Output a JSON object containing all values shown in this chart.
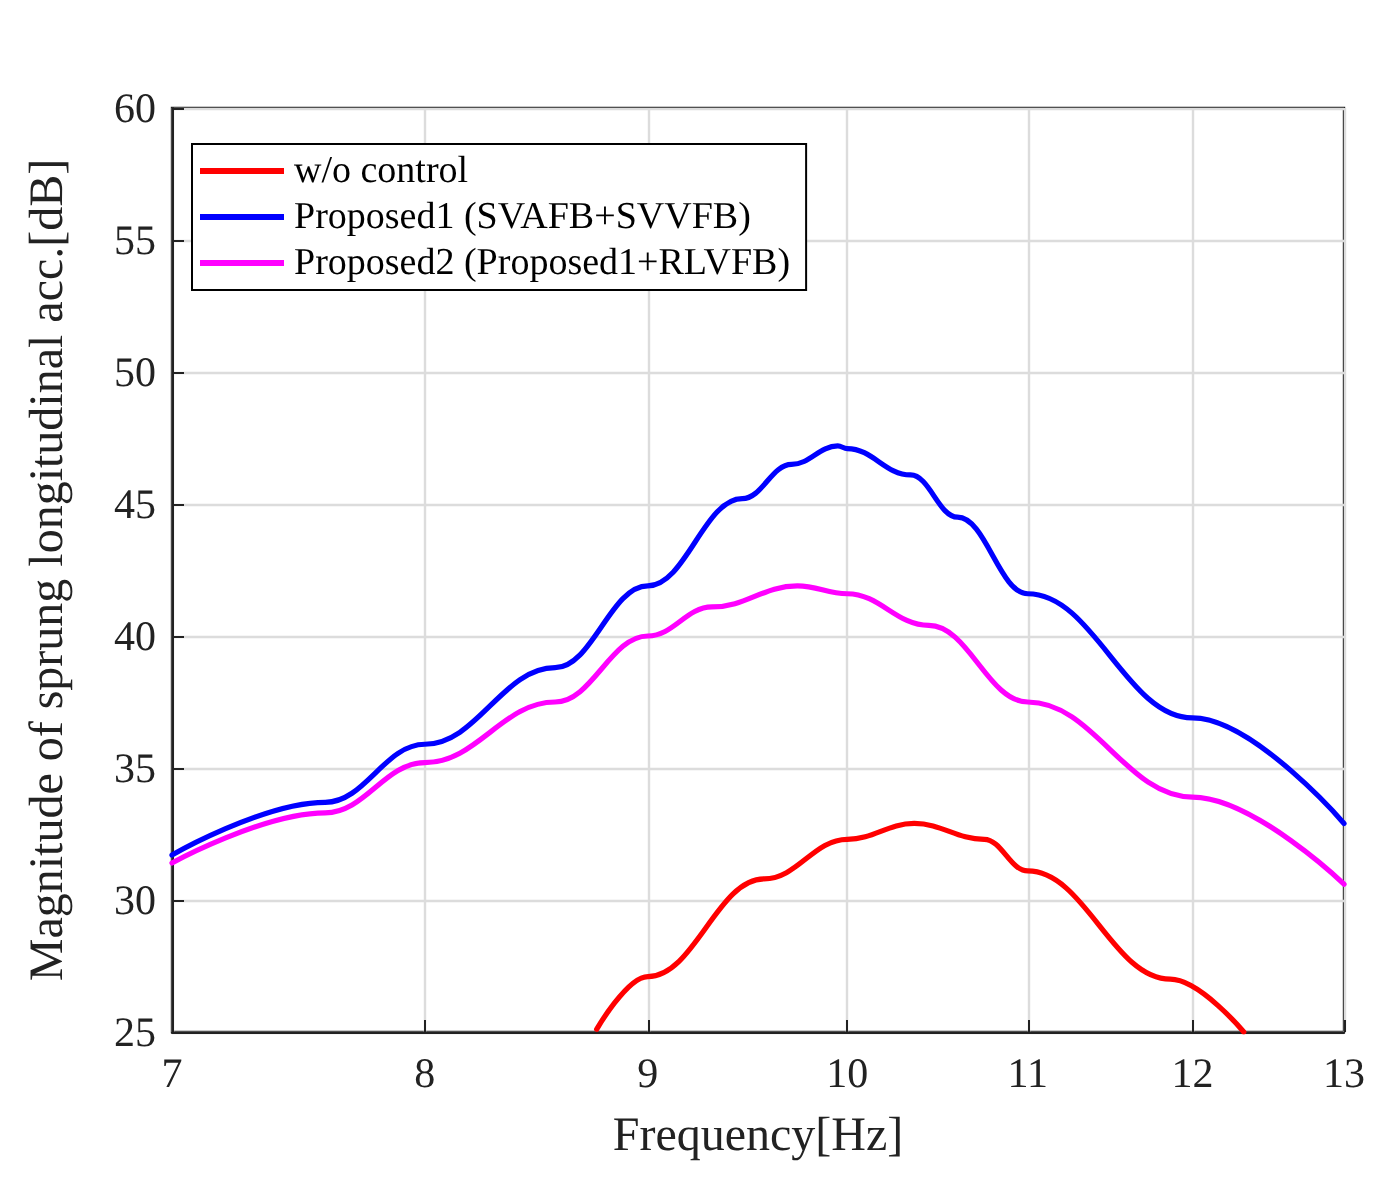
{
  "chart_data": {
    "type": "line",
    "xlabel": "Frequency[Hz]",
    "ylabel": "Magnitude of sprung longitudinal acc.[dB]",
    "log": "x",
    "grid": true,
    "legend": "top left",
    "line_style": "solid",
    "marker": "none",
    "xlim": [
      7,
      13
    ],
    "xticks": [
      7,
      8,
      9,
      10,
      11,
      12,
      13
    ],
    "ylim": [
      25,
      60
    ],
    "yticks": [
      25,
      30,
      35,
      40,
      45,
      50,
      55,
      60
    ],
    "series": [
      {
        "name": "w/o control",
        "color": "#ff0000",
        "x": [
          8.76,
          9,
          9.57,
          10,
          10.36,
          10.75,
          11,
          11.86,
          12.33
        ],
        "values": [
          25.1,
          27.1,
          30.8,
          32.3,
          32.9,
          32.3,
          31.1,
          27.0,
          25.0
        ]
      },
      {
        "name": "Proposed1 (SVAFB+SVVFB)",
        "color": "#0000ff",
        "x": [
          7,
          7.59,
          8,
          8.57,
          9,
          9.46,
          9.71,
          9.95,
          10,
          10.34,
          10.6,
          11,
          12,
          13
        ],
        "values": [
          31.7,
          33.7,
          35.9,
          38.8,
          41.9,
          45.2,
          46.5,
          47.2,
          47.1,
          46.1,
          44.5,
          41.6,
          36.9,
          32.9
        ]
      },
      {
        "name": "Proposed2 (Proposed1+RLVFB)",
        "color": "#ff00ff",
        "x": [
          7,
          7.59,
          8,
          8.57,
          9,
          9.31,
          9.74,
          10,
          10.44,
          11,
          12,
          13
        ],
        "values": [
          31.4,
          33.3,
          35.2,
          37.5,
          40.0,
          41.1,
          41.9,
          41.6,
          40.4,
          37.5,
          33.9,
          30.6
        ]
      }
    ]
  }
}
